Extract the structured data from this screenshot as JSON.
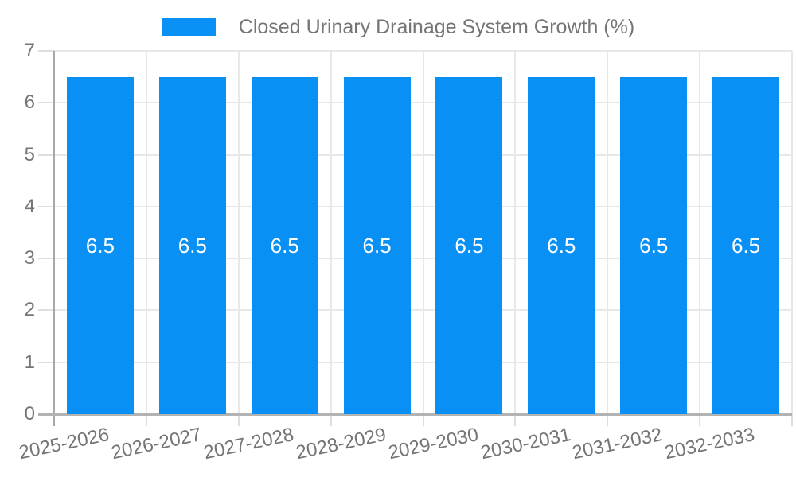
{
  "chart_data": {
    "type": "bar",
    "title": "Closed Urinary Drainage System Growth (%)",
    "categories": [
      "2025-2026",
      "2026-2027",
      "2027-2028",
      "2028-2029",
      "2029-2030",
      "2030-2031",
      "2031-2032",
      "2032-2033"
    ],
    "values": [
      6.5,
      6.5,
      6.5,
      6.5,
      6.5,
      6.5,
      6.5,
      6.5
    ],
    "bar_labels": [
      "6.5",
      "6.5",
      "6.5",
      "6.5",
      "6.5",
      "6.5",
      "6.5",
      "6.5"
    ],
    "xlabel": "",
    "ylabel": "",
    "ylim": [
      0,
      7
    ],
    "yticks": [
      0,
      1,
      2,
      3,
      4,
      5,
      6,
      7
    ],
    "grid": true,
    "legend_position": "top",
    "colors": {
      "bar": "#0990f5",
      "bar_label_text": "#ffffff",
      "axis_text": "#757575",
      "grid_line": "#e8e8e8",
      "tick_line": "#dedede",
      "y_axis_line": "#a8a8a8",
      "x_axis_line": "#b3b3b3",
      "background": "#ffffff"
    }
  }
}
